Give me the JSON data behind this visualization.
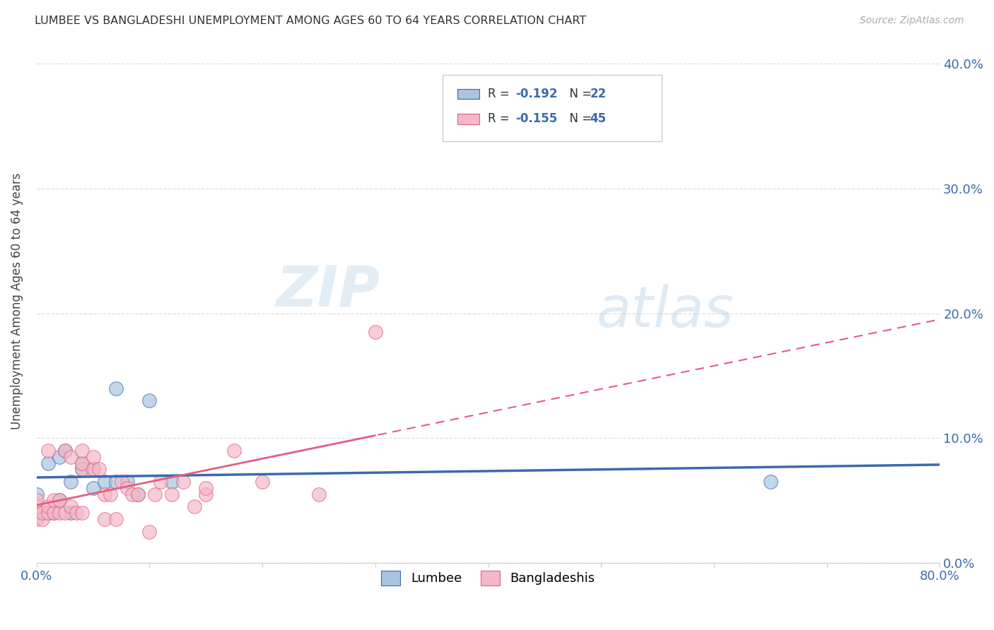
{
  "title": "LUMBEE VS BANGLADESHI UNEMPLOYMENT AMONG AGES 60 TO 64 YEARS CORRELATION CHART",
  "source": "Source: ZipAtlas.com",
  "ylabel": "Unemployment Among Ages 60 to 64 years",
  "xlim": [
    0,
    0.8
  ],
  "ylim": [
    0,
    0.42
  ],
  "xticks": [
    0.0,
    0.1,
    0.2,
    0.3,
    0.4,
    0.5,
    0.6,
    0.7,
    0.8
  ],
  "yticks": [
    0.0,
    0.1,
    0.2,
    0.3,
    0.4
  ],
  "lumbee_x": [
    0.0,
    0.0,
    0.01,
    0.01,
    0.015,
    0.02,
    0.02,
    0.025,
    0.03,
    0.03,
    0.04,
    0.04,
    0.05,
    0.05,
    0.06,
    0.07,
    0.07,
    0.08,
    0.09,
    0.1,
    0.12,
    0.65
  ],
  "lumbee_y": [
    0.04,
    0.055,
    0.04,
    0.08,
    0.04,
    0.05,
    0.085,
    0.09,
    0.04,
    0.065,
    0.075,
    0.08,
    0.06,
    0.075,
    0.065,
    0.065,
    0.14,
    0.065,
    0.055,
    0.13,
    0.065,
    0.065
  ],
  "bangladeshi_x": [
    0.0,
    0.0,
    0.0,
    0.0,
    0.005,
    0.005,
    0.01,
    0.01,
    0.01,
    0.015,
    0.015,
    0.02,
    0.02,
    0.025,
    0.025,
    0.03,
    0.03,
    0.035,
    0.04,
    0.04,
    0.04,
    0.04,
    0.05,
    0.05,
    0.055,
    0.06,
    0.06,
    0.065,
    0.07,
    0.075,
    0.08,
    0.085,
    0.09,
    0.1,
    0.105,
    0.11,
    0.12,
    0.13,
    0.14,
    0.15,
    0.15,
    0.175,
    0.2,
    0.25,
    0.3
  ],
  "bangladeshi_y": [
    0.035,
    0.04,
    0.045,
    0.05,
    0.035,
    0.04,
    0.04,
    0.045,
    0.09,
    0.04,
    0.05,
    0.04,
    0.05,
    0.04,
    0.09,
    0.045,
    0.085,
    0.04,
    0.04,
    0.075,
    0.08,
    0.09,
    0.075,
    0.085,
    0.075,
    0.035,
    0.055,
    0.055,
    0.035,
    0.065,
    0.06,
    0.055,
    0.055,
    0.025,
    0.055,
    0.065,
    0.055,
    0.065,
    0.045,
    0.055,
    0.06,
    0.09,
    0.065,
    0.055,
    0.185
  ],
  "lumbee_color": "#a8c4e0",
  "bangladeshi_color": "#f4b8c8",
  "lumbee_line_color": "#3a6aad",
  "bangladeshi_line_color": "#e06080",
  "watermark_zip": "ZIP",
  "watermark_atlas": "atlas",
  "background_color": "#ffffff",
  "grid_color": "#cccccc",
  "accent_color": "#3a6aad"
}
